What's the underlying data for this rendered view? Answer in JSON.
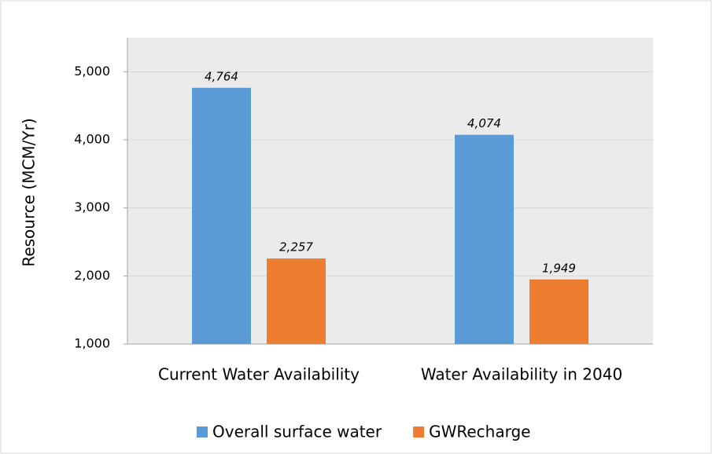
{
  "chart_data": {
    "type": "bar",
    "y_label": "Resource (MCM/Yr)",
    "categories": [
      "Current Water Availability",
      "Water Availability in 2040"
    ],
    "series": [
      {
        "name": "Overall surface water",
        "color": "#5b9bd5",
        "values": [
          4764,
          4074
        ],
        "value_labels": [
          "4,764",
          "4,074"
        ]
      },
      {
        "name": "GWRecharge",
        "color": "#ed7d31",
        "values": [
          2257,
          1949
        ],
        "value_labels": [
          "2,257",
          "1,949"
        ]
      }
    ],
    "ylim": [
      1000,
      5500
    ],
    "yticks": [
      {
        "value": 1000,
        "label": "1,000"
      },
      {
        "value": 2000,
        "label": "2,000"
      },
      {
        "value": 3000,
        "label": "3,000"
      },
      {
        "value": 4000,
        "label": "4,000"
      },
      {
        "value": 5000,
        "label": "5,000"
      }
    ],
    "grid": true,
    "legend": "bottom"
  }
}
